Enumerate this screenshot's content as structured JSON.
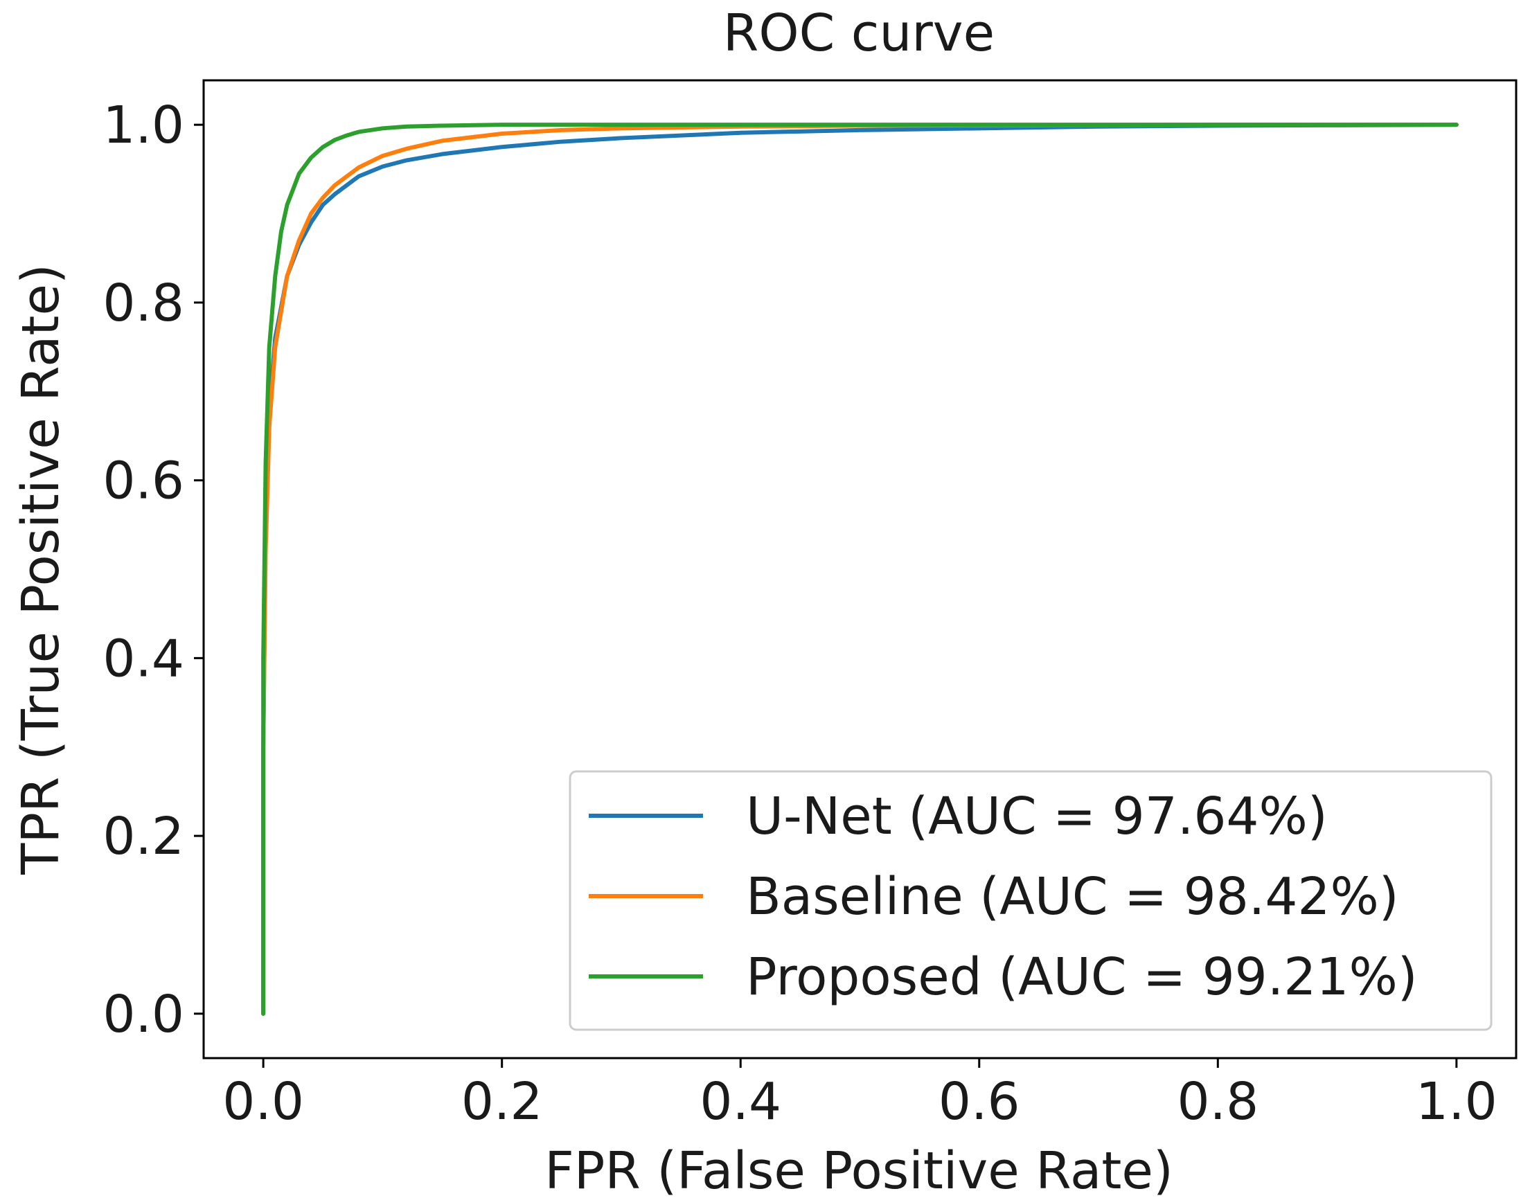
{
  "chart_data": {
    "type": "line",
    "title": "ROC curve",
    "xlabel": "FPR (False Positive Rate)",
    "ylabel": "TPR (True Positive Rate)",
    "xlim": [
      -0.05,
      1.05
    ],
    "ylim": [
      -0.05,
      1.05
    ],
    "xticks": [
      0.0,
      0.2,
      0.4,
      0.6,
      0.8,
      1.0
    ],
    "xtick_labels": [
      "0.0",
      "0.2",
      "0.4",
      "0.6",
      "0.8",
      "1.0"
    ],
    "yticks": [
      0.0,
      0.2,
      0.4,
      0.6,
      0.8,
      1.0
    ],
    "ytick_labels": [
      "0.0",
      "0.2",
      "0.4",
      "0.6",
      "0.8",
      "1.0"
    ],
    "grid": false,
    "legend_position": "lower-right",
    "series": [
      {
        "name": "U-Net (AUC = 97.64%)",
        "color": "#1f77b4",
        "x": [
          0.0,
          0.0,
          0.002,
          0.005,
          0.01,
          0.02,
          0.03,
          0.04,
          0.05,
          0.06,
          0.08,
          0.1,
          0.12,
          0.15,
          0.2,
          0.25,
          0.3,
          0.4,
          0.5,
          0.6,
          0.7,
          0.8,
          0.9,
          1.0
        ],
        "y": [
          0.0,
          0.3,
          0.55,
          0.68,
          0.76,
          0.83,
          0.865,
          0.89,
          0.91,
          0.922,
          0.942,
          0.953,
          0.96,
          0.967,
          0.975,
          0.981,
          0.985,
          0.991,
          0.994,
          0.996,
          0.998,
          0.999,
          0.9995,
          1.0
        ]
      },
      {
        "name": "Baseline (AUC = 98.42%)",
        "color": "#ff7f0e",
        "x": [
          0.0,
          0.0,
          0.002,
          0.005,
          0.01,
          0.02,
          0.03,
          0.04,
          0.05,
          0.06,
          0.08,
          0.1,
          0.12,
          0.15,
          0.2,
          0.25,
          0.3,
          0.4,
          0.5,
          0.6,
          0.8,
          1.0
        ],
        "y": [
          0.0,
          0.3,
          0.52,
          0.66,
          0.75,
          0.83,
          0.87,
          0.9,
          0.918,
          0.932,
          0.952,
          0.965,
          0.973,
          0.982,
          0.99,
          0.994,
          0.996,
          0.998,
          0.999,
          0.9995,
          1.0,
          1.0
        ]
      },
      {
        "name": "Proposed (AUC = 99.21%)",
        "color": "#2ca02c",
        "x": [
          0.0,
          0.0,
          0.002,
          0.005,
          0.01,
          0.015,
          0.02,
          0.03,
          0.04,
          0.05,
          0.06,
          0.07,
          0.08,
          0.1,
          0.12,
          0.15,
          0.2,
          0.3,
          0.5,
          1.0
        ],
        "y": [
          0.0,
          0.4,
          0.62,
          0.75,
          0.83,
          0.88,
          0.91,
          0.945,
          0.963,
          0.975,
          0.983,
          0.988,
          0.992,
          0.996,
          0.998,
          0.999,
          1.0,
          1.0,
          1.0,
          1.0
        ]
      }
    ]
  }
}
